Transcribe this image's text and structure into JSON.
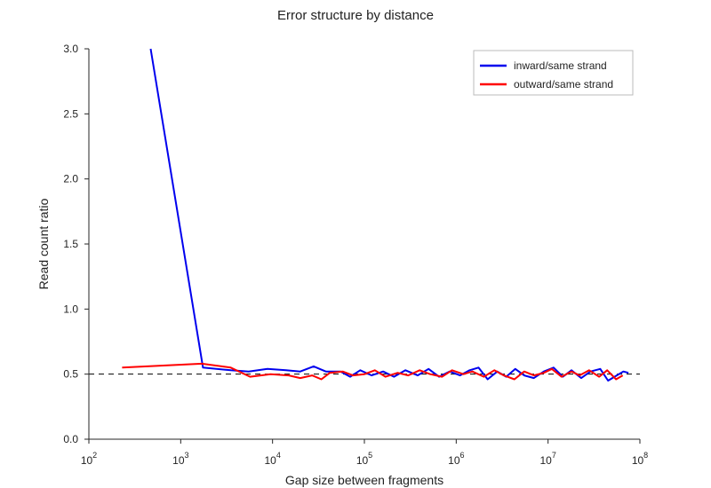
{
  "chart_data": {
    "type": "line",
    "title": "Error structure by distance",
    "xlabel": "Gap size between fragments",
    "ylabel": "Read count ratio",
    "xscale": "log",
    "xlim": [
      100,
      100000000
    ],
    "ylim": [
      0,
      3.0
    ],
    "x_ticks": [
      {
        "value": 100,
        "base": "10",
        "exp": "2"
      },
      {
        "value": 1000,
        "base": "10",
        "exp": "3"
      },
      {
        "value": 10000,
        "base": "10",
        "exp": "4"
      },
      {
        "value": 100000,
        "base": "10",
        "exp": "5"
      },
      {
        "value": 1000000,
        "base": "10",
        "exp": "6"
      },
      {
        "value": 10000000,
        "base": "10",
        "exp": "7"
      },
      {
        "value": 100000000,
        "base": "10",
        "exp": "8"
      }
    ],
    "y_ticks": [
      {
        "value": 0.0,
        "label": "0.0"
      },
      {
        "value": 0.5,
        "label": "0.5"
      },
      {
        "value": 1.0,
        "label": "1.0"
      },
      {
        "value": 1.5,
        "label": "1.5"
      },
      {
        "value": 2.0,
        "label": "2.0"
      },
      {
        "value": 2.5,
        "label": "2.5"
      },
      {
        "value": 3.0,
        "label": "3.0"
      }
    ],
    "reference_line": {
      "y": 0.5,
      "style": "dashed",
      "color": "#000000"
    },
    "grid": false,
    "legend_position": "top-right",
    "series": [
      {
        "name": "inward/same strand",
        "color": "#0000ee",
        "points": [
          [
            470,
            3.0
          ],
          [
            1750,
            0.55
          ],
          [
            3500,
            0.53
          ],
          [
            5500,
            0.52
          ],
          [
            8800,
            0.54
          ],
          [
            14000,
            0.53
          ],
          [
            20000,
            0.52
          ],
          [
            28000,
            0.56
          ],
          [
            38000,
            0.52
          ],
          [
            55000,
            0.52
          ],
          [
            70000,
            0.48
          ],
          [
            90000,
            0.53
          ],
          [
            120000,
            0.49
          ],
          [
            160000,
            0.52
          ],
          [
            210000,
            0.48
          ],
          [
            280000,
            0.53
          ],
          [
            380000,
            0.49
          ],
          [
            500000,
            0.54
          ],
          [
            650000,
            0.48
          ],
          [
            850000,
            0.52
          ],
          [
            1100000,
            0.49
          ],
          [
            1400000,
            0.53
          ],
          [
            1750000,
            0.55
          ],
          [
            2200000,
            0.46
          ],
          [
            2800000,
            0.52
          ],
          [
            3500000,
            0.48
          ],
          [
            4400000,
            0.54
          ],
          [
            5500000,
            0.49
          ],
          [
            7000000,
            0.47
          ],
          [
            9000000,
            0.52
          ],
          [
            11500000,
            0.55
          ],
          [
            14500000,
            0.48
          ],
          [
            18000000,
            0.53
          ],
          [
            23000000,
            0.47
          ],
          [
            29000000,
            0.52
          ],
          [
            37000000,
            0.54
          ],
          [
            45000000,
            0.45
          ],
          [
            56000000,
            0.49
          ],
          [
            66000000,
            0.52
          ],
          [
            75000000,
            0.51
          ]
        ]
      },
      {
        "name": "outward/same strand",
        "color": "#ff0000",
        "points": [
          [
            230,
            0.55
          ],
          [
            1700,
            0.58
          ],
          [
            3500,
            0.55
          ],
          [
            5700,
            0.48
          ],
          [
            9500,
            0.5
          ],
          [
            15000,
            0.49
          ],
          [
            20000,
            0.47
          ],
          [
            27000,
            0.49
          ],
          [
            34000,
            0.46
          ],
          [
            42000,
            0.51
          ],
          [
            58000,
            0.52
          ],
          [
            75000,
            0.49
          ],
          [
            100000,
            0.5
          ],
          [
            130000,
            0.53
          ],
          [
            170000,
            0.48
          ],
          [
            230000,
            0.51
          ],
          [
            300000,
            0.49
          ],
          [
            400000,
            0.53
          ],
          [
            520000,
            0.5
          ],
          [
            700000,
            0.48
          ],
          [
            900000,
            0.53
          ],
          [
            1200000,
            0.5
          ],
          [
            1500000,
            0.52
          ],
          [
            2000000,
            0.48
          ],
          [
            2600000,
            0.53
          ],
          [
            3300000,
            0.49
          ],
          [
            4300000,
            0.46
          ],
          [
            5500000,
            0.52
          ],
          [
            7000000,
            0.49
          ],
          [
            9000000,
            0.51
          ],
          [
            11000000,
            0.54
          ],
          [
            14000000,
            0.48
          ],
          [
            18000000,
            0.52
          ],
          [
            22000000,
            0.49
          ],
          [
            28000000,
            0.53
          ],
          [
            36000000,
            0.48
          ],
          [
            44000000,
            0.53
          ],
          [
            55000000,
            0.46
          ],
          [
            65000000,
            0.49
          ]
        ]
      }
    ]
  }
}
